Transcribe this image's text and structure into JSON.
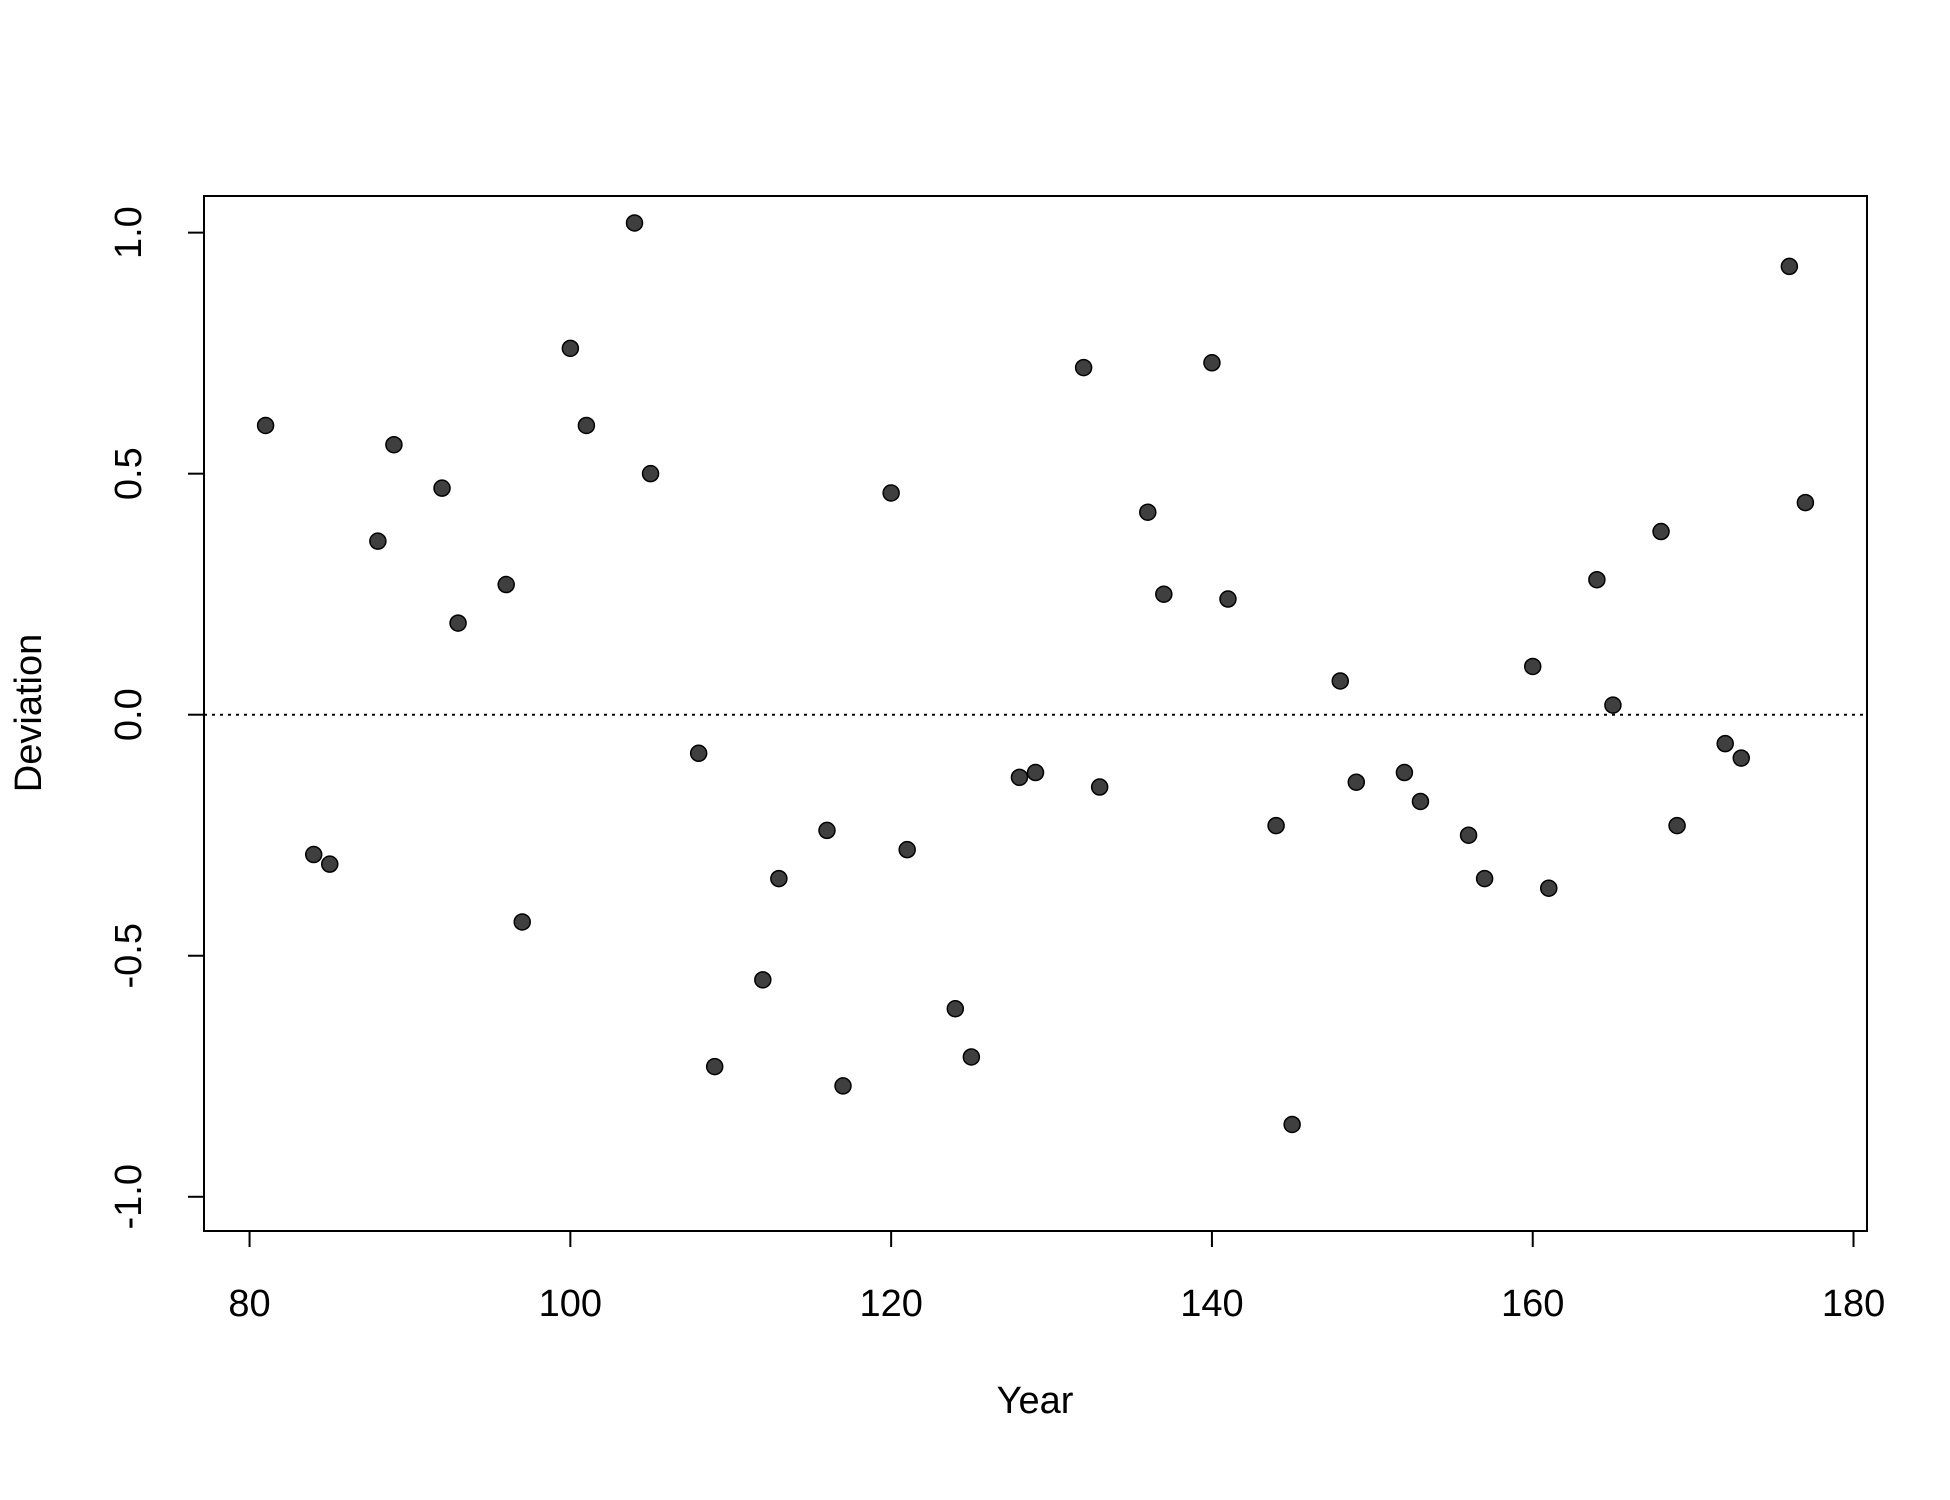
{
  "chart_data": {
    "type": "scatter",
    "x_label": "Year",
    "y_label": "Deviation",
    "x": [
      81,
      84,
      85,
      88,
      89,
      92,
      93,
      96,
      97,
      100,
      101,
      104,
      105,
      108,
      109,
      112,
      113,
      116,
      117,
      120,
      121,
      124,
      125,
      128,
      129,
      132,
      133,
      136,
      137,
      140,
      141,
      144,
      145,
      148,
      149,
      152,
      153,
      156,
      157,
      160,
      161,
      164,
      165,
      168,
      169,
      172,
      173,
      176,
      177
    ],
    "values": [
      0.6,
      -0.29,
      -0.31,
      0.36,
      0.56,
      0.47,
      0.19,
      0.27,
      -0.43,
      0.76,
      0.6,
      1.02,
      0.5,
      -0.08,
      -0.73,
      -0.55,
      -0.34,
      -0.24,
      -0.77,
      0.46,
      -0.28,
      -0.61,
      -0.71,
      -0.13,
      -0.12,
      0.72,
      -0.15,
      0.42,
      0.25,
      0.73,
      0.24,
      -0.23,
      -0.85,
      0.07,
      -0.14,
      -0.12,
      -0.18,
      -0.25,
      -0.34,
      0.1,
      -0.36,
      0.28,
      0.02,
      0.38,
      -0.23,
      -0.06,
      -0.09,
      0.93,
      0.44
    ],
    "color": "#3f3f3f",
    "xlim": [
      77.16,
      180.84
    ],
    "ylim": [
      -1.071,
      1.076
    ],
    "xticks": [
      80,
      100,
      120,
      140,
      160,
      180
    ],
    "yticks": [
      {
        "value": -1,
        "label": "-1.0"
      },
      {
        "value": -0.5,
        "label": "-0.5"
      },
      {
        "value": 0,
        "label": "0.0"
      },
      {
        "value": 0.5,
        "label": "0.5"
      },
      {
        "value": 1,
        "label": "1.0"
      }
    ],
    "hline": 0
  }
}
